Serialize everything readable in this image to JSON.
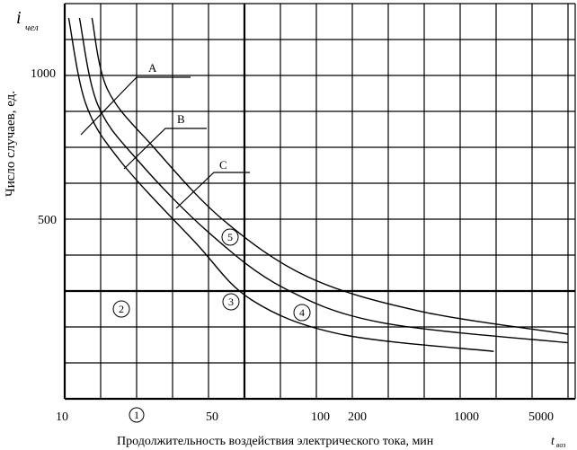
{
  "chart_data": {
    "type": "line",
    "y_symbol": "i",
    "y_symbol_sub": "чел",
    "ylabel": "Число случаев, ед.",
    "xlabel": "Продолжительность воздействия электрического тока, мин",
    "x_symbol": "t",
    "x_symbol_sub": "воз",
    "x_ticks": [
      "10",
      "50",
      "100",
      "200",
      "1000",
      "5000"
    ],
    "y_ticks": [
      "1000",
      "500"
    ],
    "series": [
      {
        "name": "А",
        "points": [
          [
            10.5,
            1200
          ],
          [
            13,
            900
          ],
          [
            20,
            700
          ],
          [
            50,
            420
          ],
          [
            100,
            220
          ],
          [
            300,
            100
          ],
          [
            2000,
            40
          ]
        ]
      },
      {
        "name": "В",
        "points": [
          [
            12,
            1200
          ],
          [
            15,
            900
          ],
          [
            25,
            700
          ],
          [
            60,
            450
          ],
          [
            150,
            260
          ],
          [
            500,
            140
          ],
          [
            5000,
            70
          ]
        ]
      },
      {
        "name": "С",
        "points": [
          [
            14,
            1200
          ],
          [
            17,
            950
          ],
          [
            30,
            750
          ],
          [
            70,
            500
          ],
          [
            200,
            300
          ],
          [
            800,
            180
          ],
          [
            5000,
            100
          ]
        ]
      }
    ],
    "zones": [
      "1",
      "2",
      "3",
      "4",
      "5"
    ]
  }
}
